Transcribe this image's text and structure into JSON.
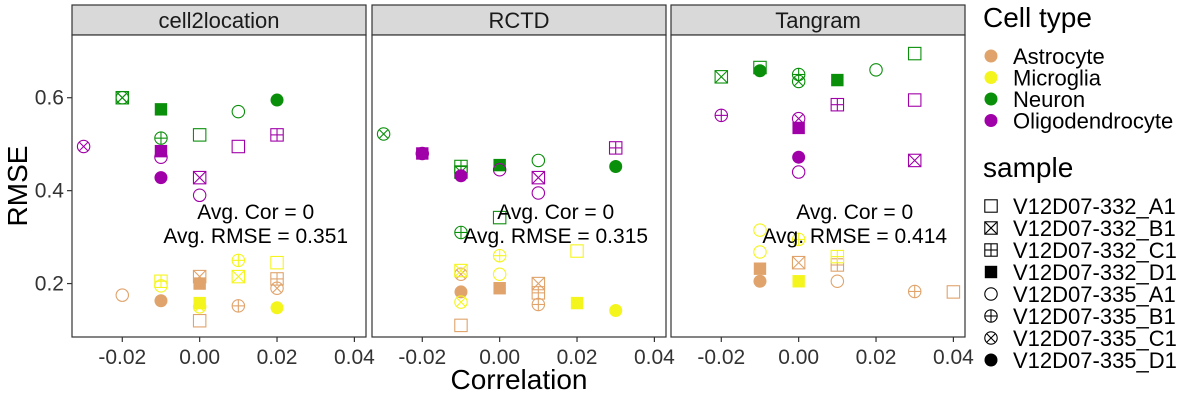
{
  "chart_data": {
    "type": "scatter",
    "xlabel": "Correlation",
    "ylabel": "RMSE",
    "xlim": [
      -0.033,
      0.043
    ],
    "ylim": [
      0.085,
      0.735
    ],
    "x_ticks": [
      -0.02,
      0.0,
      0.02,
      0.04
    ],
    "x_tick_labels": [
      "-0.02",
      "0.00",
      "0.02",
      "0.04"
    ],
    "y_ticks": [
      0.2,
      0.4,
      0.6
    ],
    "y_tick_labels": [
      "0.2",
      "0.4",
      "0.6"
    ],
    "grid": false,
    "legend_placement": "right",
    "cell_type_colors": {
      "Astrocyte": "#E0A36B",
      "Microglia": "#F5F51E",
      "Neuron": "#0A8F0A",
      "Oligodendrocyte": "#A000A8"
    },
    "sample_shapes": {
      "V12D07-332_A1": "open-square",
      "V12D07-332_B1": "square-cross",
      "V12D07-332_C1": "square-plus",
      "V12D07-332_D1": "filled-square",
      "V12D07-335_A1": "open-circle",
      "V12D07-335_B1": "circle-plus",
      "V12D07-335_C1": "circle-cross",
      "V12D07-335_D1": "filled-circle"
    },
    "legend": {
      "color_title": "Cell type",
      "color_entries": [
        "Astrocyte",
        "Microglia",
        "Neuron",
        "Oligodendrocyte"
      ],
      "shape_title": "sample",
      "shape_entries": [
        "V12D07-332_A1",
        "V12D07-332_B1",
        "V12D07-332_C1",
        "V12D07-332_D1",
        "V12D07-335_A1",
        "V12D07-335_B1",
        "V12D07-335_C1",
        "V12D07-335_D1"
      ]
    },
    "panels": [
      {
        "title": "cell2location",
        "annotation_line1": "Avg. Cor = 0",
        "annotation_line2": "Avg. RMSE = 0.351",
        "points": [
          {
            "cell_type": "Astrocyte",
            "sample": "V12D07-332_A1",
            "x": 0.0,
            "y": 0.12
          },
          {
            "cell_type": "Astrocyte",
            "sample": "V12D07-332_B1",
            "x": 0.0,
            "y": 0.215
          },
          {
            "cell_type": "Astrocyte",
            "sample": "V12D07-332_C1",
            "x": 0.02,
            "y": 0.21
          },
          {
            "cell_type": "Astrocyte",
            "sample": "V12D07-332_D1",
            "x": 0.0,
            "y": 0.2
          },
          {
            "cell_type": "Astrocyte",
            "sample": "V12D07-335_A1",
            "x": -0.02,
            "y": 0.175
          },
          {
            "cell_type": "Astrocyte",
            "sample": "V12D07-335_B1",
            "x": 0.01,
            "y": 0.152
          },
          {
            "cell_type": "Astrocyte",
            "sample": "V12D07-335_C1",
            "x": 0.02,
            "y": 0.19
          },
          {
            "cell_type": "Astrocyte",
            "sample": "V12D07-335_D1",
            "x": -0.01,
            "y": 0.163
          },
          {
            "cell_type": "Microglia",
            "sample": "V12D07-332_A1",
            "x": 0.02,
            "y": 0.245
          },
          {
            "cell_type": "Microglia",
            "sample": "V12D07-332_B1",
            "x": 0.01,
            "y": 0.215
          },
          {
            "cell_type": "Microglia",
            "sample": "V12D07-332_C1",
            "x": -0.01,
            "y": 0.205
          },
          {
            "cell_type": "Microglia",
            "sample": "V12D07-332_D1",
            "x": 0.0,
            "y": 0.158
          },
          {
            "cell_type": "Microglia",
            "sample": "V12D07-335_A1",
            "x": -0.01,
            "y": 0.195
          },
          {
            "cell_type": "Microglia",
            "sample": "V12D07-335_B1",
            "x": 0.01,
            "y": 0.25
          },
          {
            "cell_type": "Microglia",
            "sample": "V12D07-335_C1",
            "x": 0.0,
            "y": 0.15
          },
          {
            "cell_type": "Microglia",
            "sample": "V12D07-335_D1",
            "x": 0.02,
            "y": 0.148
          },
          {
            "cell_type": "Neuron",
            "sample": "V12D07-332_A1",
            "x": 0.0,
            "y": 0.52
          },
          {
            "cell_type": "Neuron",
            "sample": "V12D07-332_B1",
            "x": -0.02,
            "y": 0.6
          },
          {
            "cell_type": "Neuron",
            "sample": "V12D07-332_D1",
            "x": -0.01,
            "y": 0.575
          },
          {
            "cell_type": "Neuron",
            "sample": "V12D07-335_A1",
            "x": 0.01,
            "y": 0.57
          },
          {
            "cell_type": "Neuron",
            "sample": "V12D07-335_B1",
            "x": -0.01,
            "y": 0.513
          },
          {
            "cell_type": "Neuron",
            "sample": "V12D07-335_C1",
            "x": -0.02,
            "y": 0.6
          },
          {
            "cell_type": "Neuron",
            "sample": "V12D07-335_D1",
            "x": 0.02,
            "y": 0.595
          },
          {
            "cell_type": "Oligodendrocyte",
            "sample": "V12D07-332_A1",
            "x": 0.01,
            "y": 0.495
          },
          {
            "cell_type": "Oligodendrocyte",
            "sample": "V12D07-332_B1",
            "x": 0.0,
            "y": 0.428
          },
          {
            "cell_type": "Oligodendrocyte",
            "sample": "V12D07-332_C1",
            "x": 0.02,
            "y": 0.52
          },
          {
            "cell_type": "Oligodendrocyte",
            "sample": "V12D07-332_D1",
            "x": -0.01,
            "y": 0.485
          },
          {
            "cell_type": "Oligodendrocyte",
            "sample": "V12D07-335_A1",
            "x": 0.0,
            "y": 0.39
          },
          {
            "cell_type": "Oligodendrocyte",
            "sample": "V12D07-335_A1",
            "x": -0.01,
            "y": 0.472
          },
          {
            "cell_type": "Oligodendrocyte",
            "sample": "V12D07-335_C1",
            "x": -0.03,
            "y": 0.495
          },
          {
            "cell_type": "Oligodendrocyte",
            "sample": "V12D07-335_D1",
            "x": -0.01,
            "y": 0.428
          }
        ]
      },
      {
        "title": "RCTD",
        "annotation_line1": "Avg. Cor = 0",
        "annotation_line2": "Avg. RMSE = 0.315",
        "points": [
          {
            "cell_type": "Astrocyte",
            "sample": "V12D07-332_A1",
            "x": -0.01,
            "y": 0.11
          },
          {
            "cell_type": "Astrocyte",
            "sample": "V12D07-332_B1",
            "x": 0.01,
            "y": 0.2
          },
          {
            "cell_type": "Astrocyte",
            "sample": "V12D07-332_C1",
            "x": 0.01,
            "y": 0.18
          },
          {
            "cell_type": "Astrocyte",
            "sample": "V12D07-332_D1",
            "x": 0.0,
            "y": 0.19
          },
          {
            "cell_type": "Astrocyte",
            "sample": "V12D07-335_B1",
            "x": 0.01,
            "y": 0.155
          },
          {
            "cell_type": "Astrocyte",
            "sample": "V12D07-335_C1",
            "x": -0.01,
            "y": 0.22
          },
          {
            "cell_type": "Astrocyte",
            "sample": "V12D07-335_D1",
            "x": -0.01,
            "y": 0.182
          },
          {
            "cell_type": "Microglia",
            "sample": "V12D07-332_A1",
            "x": 0.02,
            "y": 0.27
          },
          {
            "cell_type": "Microglia",
            "sample": "V12D07-332_B1",
            "x": -0.01,
            "y": 0.228
          },
          {
            "cell_type": "Microglia",
            "sample": "V12D07-332_D1",
            "x": 0.02,
            "y": 0.158
          },
          {
            "cell_type": "Microglia",
            "sample": "V12D07-335_A1",
            "x": 0.0,
            "y": 0.22
          },
          {
            "cell_type": "Microglia",
            "sample": "V12D07-335_B1",
            "x": 0.0,
            "y": 0.26
          },
          {
            "cell_type": "Microglia",
            "sample": "V12D07-335_C1",
            "x": -0.01,
            "y": 0.16
          },
          {
            "cell_type": "Microglia",
            "sample": "V12D07-335_D1",
            "x": 0.03,
            "y": 0.142
          },
          {
            "cell_type": "Neuron",
            "sample": "V12D07-332_A1",
            "x": 0.0,
            "y": 0.342
          },
          {
            "cell_type": "Neuron",
            "sample": "V12D07-332_B1",
            "x": -0.01,
            "y": 0.44
          },
          {
            "cell_type": "Neuron",
            "sample": "V12D07-332_C1",
            "x": -0.01,
            "y": 0.452
          },
          {
            "cell_type": "Neuron",
            "sample": "V12D07-332_D1",
            "x": 0.0,
            "y": 0.455
          },
          {
            "cell_type": "Neuron",
            "sample": "V12D07-335_A1",
            "x": 0.01,
            "y": 0.465
          },
          {
            "cell_type": "Neuron",
            "sample": "V12D07-335_B1",
            "x": -0.01,
            "y": 0.31
          },
          {
            "cell_type": "Neuron",
            "sample": "V12D07-335_C1",
            "x": -0.03,
            "y": 0.522
          },
          {
            "cell_type": "Neuron",
            "sample": "V12D07-335_D1",
            "x": 0.03,
            "y": 0.452
          },
          {
            "cell_type": "Oligodendrocyte",
            "sample": "V12D07-332_B1",
            "x": 0.01,
            "y": 0.428
          },
          {
            "cell_type": "Oligodendrocyte",
            "sample": "V12D07-332_C1",
            "x": 0.03,
            "y": 0.492
          },
          {
            "cell_type": "Oligodendrocyte",
            "sample": "V12D07-332_D1",
            "x": -0.02,
            "y": 0.48
          },
          {
            "cell_type": "Oligodendrocyte",
            "sample": "V12D07-335_A1",
            "x": 0.01,
            "y": 0.395
          },
          {
            "cell_type": "Oligodendrocyte",
            "sample": "V12D07-335_A1",
            "x": 0.0,
            "y": 0.445
          },
          {
            "cell_type": "Oligodendrocyte",
            "sample": "V12D07-335_C1",
            "x": -0.02,
            "y": 0.48
          },
          {
            "cell_type": "Oligodendrocyte",
            "sample": "V12D07-335_D1",
            "x": -0.01,
            "y": 0.432
          }
        ]
      },
      {
        "title": "Tangram",
        "annotation_line1": "Avg. Cor = 0",
        "annotation_line2": "Avg. RMSE = 0.414",
        "points": [
          {
            "cell_type": "Astrocyte",
            "sample": "V12D07-332_A1",
            "x": 0.04,
            "y": 0.182
          },
          {
            "cell_type": "Astrocyte",
            "sample": "V12D07-332_B1",
            "x": 0.0,
            "y": 0.245
          },
          {
            "cell_type": "Astrocyte",
            "sample": "V12D07-332_C1",
            "x": 0.01,
            "y": 0.24
          },
          {
            "cell_type": "Astrocyte",
            "sample": "V12D07-332_D1",
            "x": -0.01,
            "y": 0.232
          },
          {
            "cell_type": "Astrocyte",
            "sample": "V12D07-335_A1",
            "x": 0.01,
            "y": 0.205
          },
          {
            "cell_type": "Astrocyte",
            "sample": "V12D07-335_B1",
            "x": 0.03,
            "y": 0.183
          },
          {
            "cell_type": "Astrocyte",
            "sample": "V12D07-335_D1",
            "x": -0.01,
            "y": 0.205
          },
          {
            "cell_type": "Microglia",
            "sample": "V12D07-332_C1",
            "x": 0.01,
            "y": 0.258
          },
          {
            "cell_type": "Microglia",
            "sample": "V12D07-332_D1",
            "x": 0.0,
            "y": 0.205
          },
          {
            "cell_type": "Microglia",
            "sample": "V12D07-335_A1",
            "x": -0.01,
            "y": 0.315
          },
          {
            "cell_type": "Microglia",
            "sample": "V12D07-335_A1",
            "x": -0.01,
            "y": 0.268
          },
          {
            "cell_type": "Microglia",
            "sample": "V12D07-335_B1",
            "x": 0.0,
            "y": 0.295
          },
          {
            "cell_type": "Neuron",
            "sample": "V12D07-332_A1",
            "x": 0.03,
            "y": 0.695
          },
          {
            "cell_type": "Neuron",
            "sample": "V12D07-332_A1",
            "x": -0.01,
            "y": 0.665
          },
          {
            "cell_type": "Neuron",
            "sample": "V12D07-332_B1",
            "x": -0.02,
            "y": 0.645
          },
          {
            "cell_type": "Neuron",
            "sample": "V12D07-332_D1",
            "x": 0.01,
            "y": 0.638
          },
          {
            "cell_type": "Neuron",
            "sample": "V12D07-335_A1",
            "x": 0.02,
            "y": 0.66
          },
          {
            "cell_type": "Neuron",
            "sample": "V12D07-335_B1",
            "x": 0.0,
            "y": 0.65
          },
          {
            "cell_type": "Neuron",
            "sample": "V12D07-335_C1",
            "x": 0.0,
            "y": 0.635
          },
          {
            "cell_type": "Neuron",
            "sample": "V12D07-335_D1",
            "x": -0.01,
            "y": 0.658
          },
          {
            "cell_type": "Oligodendrocyte",
            "sample": "V12D07-332_A1",
            "x": 0.03,
            "y": 0.595
          },
          {
            "cell_type": "Oligodendrocyte",
            "sample": "V12D07-332_B1",
            "x": 0.03,
            "y": 0.465
          },
          {
            "cell_type": "Oligodendrocyte",
            "sample": "V12D07-332_C1",
            "x": 0.01,
            "y": 0.585
          },
          {
            "cell_type": "Oligodendrocyte",
            "sample": "V12D07-332_D1",
            "x": 0.0,
            "y": 0.535
          },
          {
            "cell_type": "Oligodendrocyte",
            "sample": "V12D07-335_A1",
            "x": 0.0,
            "y": 0.44
          },
          {
            "cell_type": "Oligodendrocyte",
            "sample": "V12D07-335_B1",
            "x": -0.02,
            "y": 0.562
          },
          {
            "cell_type": "Oligodendrocyte",
            "sample": "V12D07-335_C1",
            "x": 0.0,
            "y": 0.555
          },
          {
            "cell_type": "Oligodendrocyte",
            "sample": "V12D07-335_D1",
            "x": 0.0,
            "y": 0.472
          }
        ]
      }
    ]
  }
}
